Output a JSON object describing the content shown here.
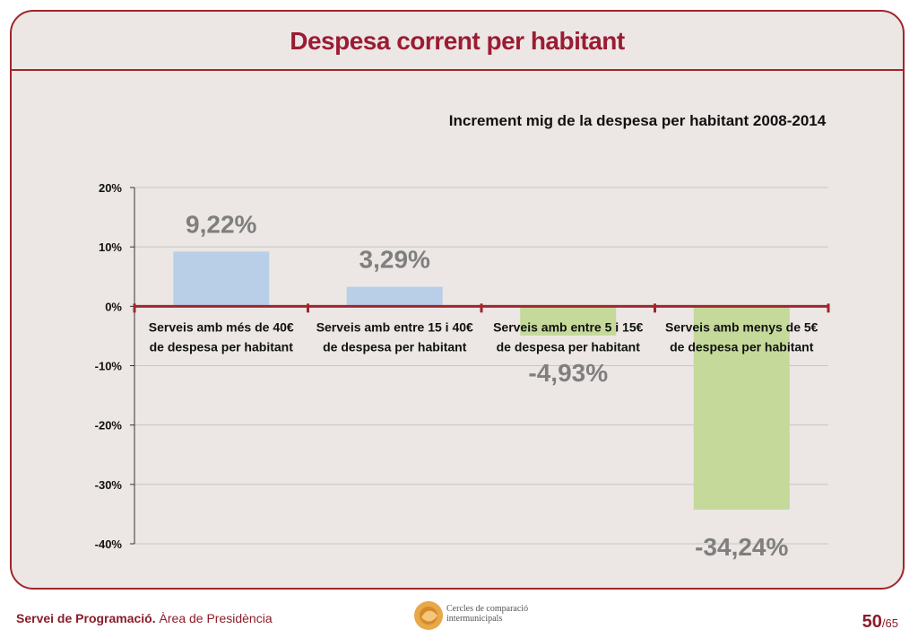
{
  "slide": {
    "title": "Despesa corrent per habitant"
  },
  "chart_data": {
    "type": "bar",
    "title": "Increment mig de la despesa per habitant 2008-2014",
    "categories": [
      [
        "Serveis amb més de 40€",
        "de despesa per habitant"
      ],
      [
        "Serveis amb entre 15 i 40€",
        "de despesa per habitant"
      ],
      [
        "Serveis amb entre 5 i 15€",
        "de despesa per habitant"
      ],
      [
        "Serveis amb menys de 5€",
        "de despesa per habitant"
      ]
    ],
    "values": [
      9.22,
      3.29,
      -4.93,
      -34.24
    ],
    "data_labels": [
      "9,22%",
      "3,29%",
      "-4,93%",
      "-34,24%"
    ],
    "ylim": [
      -40,
      20
    ],
    "yticks": [
      20,
      10,
      0,
      -10,
      -20,
      -30,
      -40
    ],
    "ytick_labels": [
      "20%",
      "10%",
      "0%",
      "-10%",
      "-20%",
      "-30%",
      "-40%"
    ],
    "grid": true,
    "colors": {
      "positive": "#b9cfe8",
      "negative": "#c5d99a",
      "axis": "#a0262c",
      "label": "#7f7f7f"
    }
  },
  "footer": {
    "org_main": "Servei de Programació.",
    "org_sub": "Àrea de Presidència",
    "logo_text": "Cercles de comparació\nintermunicipals",
    "page_current": "50",
    "page_total": "/65"
  }
}
